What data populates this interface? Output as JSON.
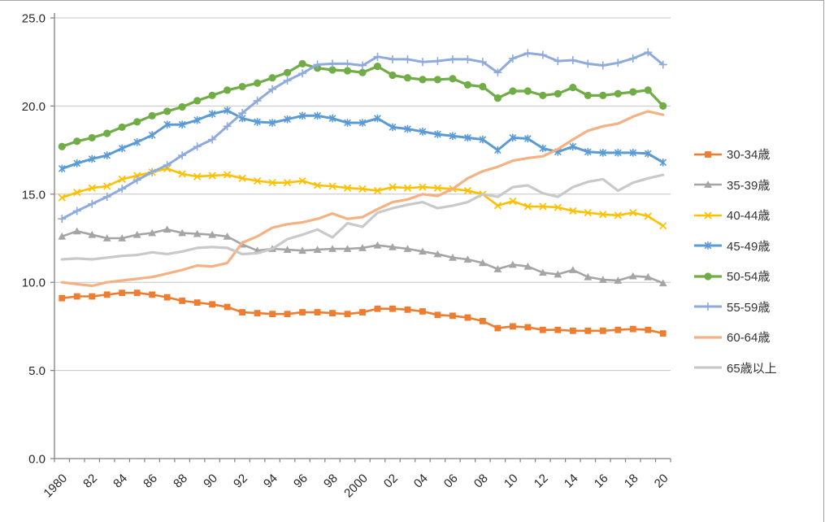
{
  "chart_data": {
    "type": "line",
    "title": "",
    "x": [
      1980,
      1981,
      1982,
      1983,
      1984,
      1985,
      1986,
      1987,
      1988,
      1989,
      1990,
      1991,
      1992,
      1993,
      1994,
      1995,
      1996,
      1997,
      1998,
      1999,
      2000,
      2001,
      2002,
      2003,
      2004,
      2005,
      2006,
      2007,
      2008,
      2009,
      2010,
      2011,
      2012,
      2013,
      2014,
      2015,
      2016,
      2017,
      2018,
      2019,
      2020
    ],
    "x_tick_labels": [
      "1980",
      "82",
      "84",
      "86",
      "88",
      "90",
      "92",
      "94",
      "96",
      "98",
      "2000",
      "02",
      "04",
      "06",
      "08",
      "10",
      "12",
      "14",
      "16",
      "18",
      "20"
    ],
    "x_label_every": 2,
    "y_ticks": [
      0,
      5,
      10,
      15,
      20,
      25
    ],
    "y_tick_labels": [
      "0.0",
      "5.0",
      "10.0",
      "15.0",
      "20.0",
      "25.0"
    ],
    "ylim": [
      0,
      25
    ],
    "grid": "horizontal",
    "legend_position": "right",
    "axis_color": "#808080",
    "gridline_color": "#c6c6c6",
    "label_color": "#262626",
    "series": [
      {
        "name": "30-34歳",
        "color": "#ED7D31",
        "marker": "square",
        "line_width": 2.6,
        "values": [
          9.1,
          9.2,
          9.2,
          9.3,
          9.4,
          9.4,
          9.3,
          9.15,
          8.95,
          8.85,
          8.75,
          8.6,
          8.3,
          8.25,
          8.2,
          8.2,
          8.3,
          8.3,
          8.25,
          8.2,
          8.3,
          8.5,
          8.5,
          8.45,
          8.35,
          8.15,
          8.1,
          8.0,
          7.8,
          7.4,
          7.5,
          7.45,
          7.3,
          7.3,
          7.25,
          7.25,
          7.25,
          7.3,
          7.35,
          7.3,
          7.1
        ]
      },
      {
        "name": "35-39歳",
        "color": "#A5A5A5",
        "marker": "triangle",
        "line_width": 2.6,
        "values": [
          12.6,
          12.9,
          12.7,
          12.5,
          12.5,
          12.7,
          12.8,
          13.0,
          12.8,
          12.75,
          12.7,
          12.6,
          12.15,
          11.8,
          11.9,
          11.85,
          11.8,
          11.85,
          11.9,
          11.9,
          11.95,
          12.1,
          12.0,
          11.9,
          11.75,
          11.6,
          11.4,
          11.3,
          11.1,
          10.75,
          11.0,
          10.9,
          10.55,
          10.45,
          10.7,
          10.3,
          10.15,
          10.1,
          10.35,
          10.3,
          9.95
        ]
      },
      {
        "name": "40-44歳",
        "color": "#FFC000",
        "marker": "x",
        "line_width": 2.6,
        "values": [
          14.8,
          15.1,
          15.35,
          15.45,
          15.85,
          16.05,
          16.25,
          16.45,
          16.15,
          16.0,
          16.05,
          16.1,
          15.9,
          15.75,
          15.65,
          15.65,
          15.75,
          15.5,
          15.45,
          15.35,
          15.3,
          15.2,
          15.4,
          15.35,
          15.4,
          15.35,
          15.3,
          15.2,
          15.0,
          14.35,
          14.6,
          14.3,
          14.3,
          14.25,
          14.05,
          13.95,
          13.85,
          13.8,
          13.95,
          13.75,
          13.2
        ]
      },
      {
        "name": "45-49歳",
        "color": "#5B9BD5",
        "marker": "asterisk",
        "line_width": 3,
        "values": [
          16.45,
          16.75,
          17.0,
          17.2,
          17.6,
          17.95,
          18.35,
          18.95,
          18.95,
          19.2,
          19.55,
          19.75,
          19.3,
          19.1,
          19.05,
          19.25,
          19.45,
          19.45,
          19.3,
          19.05,
          19.05,
          19.3,
          18.8,
          18.7,
          18.55,
          18.4,
          18.3,
          18.2,
          18.1,
          17.5,
          18.2,
          18.15,
          17.6,
          17.4,
          17.7,
          17.4,
          17.35,
          17.35,
          17.35,
          17.3,
          16.8
        ]
      },
      {
        "name": "50-54歳",
        "color": "#70AD47",
        "marker": "circle",
        "line_width": 3.2,
        "values": [
          17.7,
          18.0,
          18.2,
          18.45,
          18.8,
          19.1,
          19.45,
          19.7,
          19.95,
          20.3,
          20.6,
          20.9,
          21.1,
          21.3,
          21.6,
          21.9,
          22.4,
          22.15,
          22.05,
          22.0,
          21.9,
          22.25,
          21.75,
          21.6,
          21.5,
          21.5,
          21.55,
          21.2,
          21.1,
          20.45,
          20.85,
          20.85,
          20.6,
          20.7,
          21.05,
          20.6,
          20.6,
          20.7,
          20.8,
          20.9,
          20.0
        ]
      },
      {
        "name": "55-59歳",
        "color": "#8FAADC",
        "marker": "plus",
        "line_width": 3,
        "values": [
          13.6,
          14.05,
          14.45,
          14.85,
          15.3,
          15.8,
          16.25,
          16.65,
          17.2,
          17.7,
          18.1,
          18.85,
          19.6,
          20.3,
          20.95,
          21.45,
          21.85,
          22.35,
          22.4,
          22.4,
          22.3,
          22.8,
          22.65,
          22.65,
          22.5,
          22.55,
          22.65,
          22.65,
          22.5,
          21.9,
          22.7,
          23.0,
          22.9,
          22.55,
          22.6,
          22.4,
          22.3,
          22.45,
          22.7,
          23.05,
          22.35
        ]
      },
      {
        "name": "60-64歳",
        "color": "#F4B183",
        "marker": "none",
        "line_width": 3.2,
        "values": [
          10.0,
          9.9,
          9.8,
          10.0,
          10.1,
          10.2,
          10.3,
          10.5,
          10.7,
          10.95,
          10.9,
          11.1,
          12.25,
          12.6,
          13.1,
          13.3,
          13.4,
          13.6,
          13.9,
          13.6,
          13.7,
          14.15,
          14.55,
          14.7,
          15.0,
          14.9,
          15.3,
          15.9,
          16.3,
          16.55,
          16.9,
          17.05,
          17.15,
          17.55,
          18.1,
          18.6,
          18.85,
          19.0,
          19.4,
          19.7,
          19.5
        ]
      },
      {
        "name": "65歳以上",
        "color": "#C9C9C9",
        "marker": "none",
        "line_width": 3.2,
        "values": [
          11.3,
          11.35,
          11.3,
          11.4,
          11.5,
          11.55,
          11.7,
          11.6,
          11.75,
          11.95,
          12.0,
          11.95,
          11.6,
          11.65,
          11.9,
          12.45,
          12.7,
          13.0,
          12.55,
          13.35,
          13.15,
          13.95,
          14.2,
          14.4,
          14.55,
          14.2,
          14.35,
          14.55,
          15.0,
          14.85,
          15.4,
          15.5,
          15.05,
          14.85,
          15.4,
          15.7,
          15.85,
          15.2,
          15.65,
          15.9,
          16.1
        ]
      }
    ]
  }
}
